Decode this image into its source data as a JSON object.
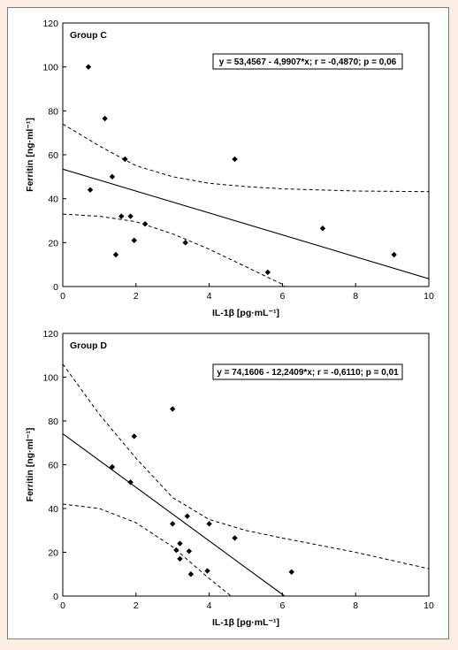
{
  "colors": {
    "background": "#fbeee3",
    "panel": "#ffffff",
    "ink": "#000000"
  },
  "chart_data": [
    {
      "type": "scatter",
      "group_label": "Group C",
      "xlabel": "IL-1β [pg·mL⁻¹]",
      "ylabel": "Ferritin [ng·ml⁻¹]",
      "xlim": [
        0,
        10
      ],
      "ylim": [
        0,
        120
      ],
      "xticks": [
        0,
        2,
        4,
        6,
        8,
        10
      ],
      "yticks": [
        0,
        20,
        40,
        60,
        80,
        100,
        120
      ],
      "equation": "y = 53,4567 - 4,9907*x; r = -0,4870; p = 0,06",
      "regression": {
        "intercept": 53.4567,
        "slope": -4.9907
      },
      "confidence_band": {
        "upper": [
          [
            0,
            74
          ],
          [
            1,
            64
          ],
          [
            2,
            55
          ],
          [
            3,
            50
          ],
          [
            4,
            47
          ],
          [
            5,
            45.5
          ],
          [
            6,
            44.5
          ],
          [
            8,
            43.5
          ],
          [
            10,
            43.2
          ]
        ],
        "lower": [
          [
            0,
            33
          ],
          [
            1,
            32
          ],
          [
            2,
            29.5
          ],
          [
            3,
            24
          ],
          [
            4,
            17
          ],
          [
            5,
            9
          ],
          [
            6,
            1
          ],
          [
            6.2,
            -2
          ]
        ]
      },
      "points": [
        {
          "x": 0.7,
          "y": 100
        },
        {
          "x": 0.75,
          "y": 44
        },
        {
          "x": 1.15,
          "y": 76.5
        },
        {
          "x": 1.35,
          "y": 50
        },
        {
          "x": 1.45,
          "y": 14.5
        },
        {
          "x": 1.6,
          "y": 32
        },
        {
          "x": 1.7,
          "y": 58
        },
        {
          "x": 1.85,
          "y": 32
        },
        {
          "x": 1.95,
          "y": 21
        },
        {
          "x": 2.25,
          "y": 28.5
        },
        {
          "x": 3.35,
          "y": 20
        },
        {
          "x": 4.7,
          "y": 58
        },
        {
          "x": 5.6,
          "y": 6.5
        },
        {
          "x": 7.1,
          "y": 26.5
        },
        {
          "x": 9.05,
          "y": 14.5
        }
      ]
    },
    {
      "type": "scatter",
      "group_label": "Group D",
      "xlabel": "IL-1β [pg·mL⁻¹]",
      "ylabel": "Ferritin [ng·ml⁻¹]",
      "xlim": [
        0,
        10
      ],
      "ylim": [
        0,
        120
      ],
      "xticks": [
        0,
        2,
        4,
        6,
        8,
        10
      ],
      "yticks": [
        0,
        20,
        40,
        60,
        80,
        100,
        120
      ],
      "equation": "y = 74,1606 - 12,2409*x; r = -0,6110; p = 0,01",
      "regression": {
        "intercept": 74.1606,
        "slope": -12.2409
      },
      "confidence_band": {
        "upper": [
          [
            0,
            106
          ],
          [
            1,
            83
          ],
          [
            2,
            63
          ],
          [
            3,
            45
          ],
          [
            4,
            35
          ],
          [
            5,
            30
          ],
          [
            6,
            26.5
          ],
          [
            8,
            20
          ],
          [
            10,
            12.5
          ]
        ],
        "lower": [
          [
            0,
            42
          ],
          [
            1,
            40
          ],
          [
            2,
            33.5
          ],
          [
            3,
            22.5
          ],
          [
            4,
            8
          ],
          [
            4.75,
            -2
          ]
        ]
      },
      "points": [
        {
          "x": 1.35,
          "y": 59
        },
        {
          "x": 1.85,
          "y": 52
        },
        {
          "x": 1.95,
          "y": 73
        },
        {
          "x": 3.0,
          "y": 85.5
        },
        {
          "x": 3.0,
          "y": 33
        },
        {
          "x": 3.1,
          "y": 21
        },
        {
          "x": 3.2,
          "y": 24
        },
        {
          "x": 3.2,
          "y": 17
        },
        {
          "x": 3.4,
          "y": 36.5
        },
        {
          "x": 3.45,
          "y": 20.5
        },
        {
          "x": 3.5,
          "y": 10
        },
        {
          "x": 3.95,
          "y": 11.5
        },
        {
          "x": 4.0,
          "y": 33
        },
        {
          "x": 4.7,
          "y": 26.5
        },
        {
          "x": 6.25,
          "y": 11
        }
      ]
    }
  ]
}
